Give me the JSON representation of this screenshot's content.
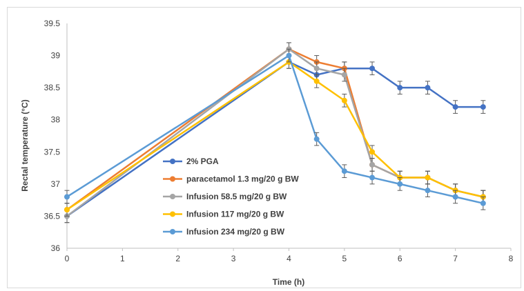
{
  "chart_data": {
    "type": "line",
    "title": "",
    "xlabel": "Time (h)",
    "ylabel": "Rectal temperature (°C)",
    "xlim": [
      0,
      8
    ],
    "ylim": [
      36,
      39.5
    ],
    "x_ticks": [
      "0",
      "1",
      "2",
      "3",
      "4",
      "5",
      "6",
      "7",
      "8"
    ],
    "y_ticks": [
      "36",
      "36.5",
      "37",
      "37.5",
      "38",
      "38.5",
      "39",
      "39.5"
    ],
    "grid": false,
    "legend_position": "inside-lower-center",
    "error_bars": true,
    "series": [
      {
        "name": "2% PGA",
        "color": "#4472C4",
        "x": [
          0,
          4,
          4.5,
          5,
          5.5,
          6,
          6.5,
          7,
          7.5
        ],
        "y": [
          36.5,
          38.9,
          38.7,
          38.8,
          38.8,
          38.5,
          38.5,
          38.2,
          38.2
        ],
        "err": [
          0.1,
          0.1,
          0.1,
          0.1,
          0.1,
          0.1,
          0.1,
          0.1,
          0.1
        ]
      },
      {
        "name": "paracetamol 1.3 mg/20 g BW",
        "color": "#ED7D31",
        "x": [
          0,
          4,
          4.5,
          5,
          5.5,
          6,
          6.5,
          7,
          7.5
        ],
        "y": [
          36.6,
          39.1,
          38.9,
          38.8,
          37.3,
          37.1,
          37.1,
          36.9,
          36.8
        ],
        "err": [
          0.1,
          0.1,
          0.1,
          0.1,
          0.1,
          0.1,
          0.1,
          0.1,
          0.1
        ]
      },
      {
        "name": "Infusion 58.5 mg/20 g BW",
        "color": "#A5A5A5",
        "x": [
          0,
          4,
          4.5,
          5,
          5.5,
          6,
          6.5,
          7,
          7.5
        ],
        "y": [
          36.5,
          39.1,
          38.8,
          38.7,
          37.3,
          37.1,
          37.1,
          36.9,
          36.8
        ],
        "err": [
          0.1,
          0.1,
          0.1,
          0.1,
          0.1,
          0.1,
          0.1,
          0.1,
          0.1
        ]
      },
      {
        "name": "Infusion 117 mg/20 g BW",
        "color": "#FFC000",
        "x": [
          0,
          4,
          4.5,
          5,
          5.5,
          6,
          6.5,
          7,
          7.5
        ],
        "y": [
          36.6,
          38.9,
          38.6,
          38.3,
          37.5,
          37.1,
          37.1,
          36.9,
          36.8
        ],
        "err": [
          0.1,
          0.1,
          0.1,
          0.1,
          0.1,
          0.1,
          0.1,
          0.1,
          0.1
        ]
      },
      {
        "name": "Infusion 234 mg/20 g BW",
        "color": "#5B9BD5",
        "x": [
          0,
          4,
          4.5,
          5,
          5.5,
          6,
          6.5,
          7,
          7.5
        ],
        "y": [
          36.8,
          39.0,
          37.7,
          37.2,
          37.1,
          37.0,
          36.9,
          36.8,
          36.7
        ],
        "err": [
          0.1,
          0.1,
          0.1,
          0.1,
          0.1,
          0.1,
          0.1,
          0.1,
          0.1
        ]
      }
    ]
  }
}
